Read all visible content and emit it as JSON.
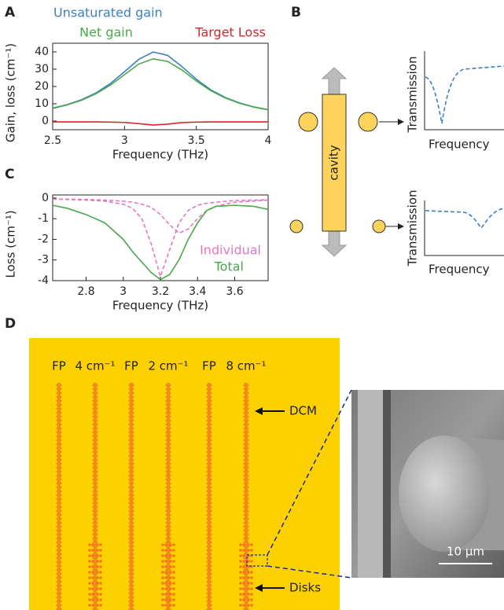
{
  "panel_labels": [
    "A",
    "B",
    "C",
    "D"
  ],
  "chart_data": [
    {
      "type": "line",
      "x_label": "Frequency (THz)",
      "y_label": "Gain, loss (cm⁻¹)",
      "x": [
        2.5,
        2.6,
        2.7,
        2.8,
        2.9,
        3.0,
        3.1,
        3.2,
        3.3,
        3.4,
        3.5,
        3.6,
        3.7,
        3.8,
        3.9,
        4.0
      ],
      "xlim": [
        2.5,
        4
      ],
      "xticks": [
        2.5,
        3,
        3.5,
        4
      ],
      "ylim": [
        -5,
        45
      ],
      "yticks": [
        0,
        10,
        20,
        30,
        40
      ],
      "series": [
        {
          "name": "Unsaturated gain",
          "color": "#3b7fc4",
          "values": [
            7.5,
            9.5,
            12.3,
            16.2,
            21.6,
            28.5,
            35.7,
            39.9,
            38.0,
            31.5,
            24.2,
            18.1,
            13.7,
            10.5,
            8.2,
            6.6
          ]
        },
        {
          "name": "Net gain",
          "color": "#4aa84a",
          "values": [
            7.3,
            9.3,
            12,
            15.7,
            20.7,
            26.8,
            33,
            36,
            34.5,
            29.5,
            23.2,
            17.6,
            13.4,
            10.3,
            8.1,
            6.5
          ]
        },
        {
          "name": "Target Loss",
          "color": "#d62728",
          "values": [
            -0.5,
            -0.5,
            -0.5,
            -0.5,
            -0.6,
            -0.8,
            -1.5,
            -2.3,
            -1.8,
            -0.9,
            -0.6,
            -0.5,
            -0.5,
            -0.5,
            -0.5,
            -0.5
          ]
        }
      ]
    },
    {
      "type": "line",
      "x_label": "Frequency (THz)",
      "y_label": "Loss (cm⁻¹)",
      "x": [
        2.62,
        2.7,
        2.8,
        2.9,
        3.0,
        3.05,
        3.1,
        3.15,
        3.2,
        3.25,
        3.3,
        3.35,
        3.4,
        3.45,
        3.5,
        3.6,
        3.7,
        3.78
      ],
      "xlim": [
        2.62,
        3.78
      ],
      "xticks": [
        2.8,
        3,
        3.2,
        3.4,
        3.6
      ],
      "ylim": [
        -4,
        0.15
      ],
      "yticks": [
        0,
        -1,
        -2,
        -3,
        -4
      ],
      "series": [
        {
          "name": "Individual",
          "color": "#e377c2",
          "dashed": true,
          "values": [
            -0.05,
            -0.07,
            -0.1,
            -0.15,
            -0.3,
            -0.5,
            -1.0,
            -2.2,
            -3.8,
            -2.5,
            -1.2,
            -0.6,
            -0.35,
            -0.25,
            -0.2,
            -0.12,
            -0.1,
            -0.08
          ]
        },
        {
          "color": "#e377c2",
          "dashed": true,
          "values": [
            -0.05,
            -0.05,
            -0.07,
            -0.1,
            -0.15,
            -0.2,
            -0.3,
            -0.45,
            -0.8,
            -1.3,
            -1.7,
            -1.5,
            -1.0,
            -0.6,
            -0.4,
            -0.2,
            -0.15,
            -0.1
          ]
        },
        {
          "name": "Total",
          "color": "#4aa84a",
          "values": [
            -0.35,
            -0.5,
            -0.8,
            -1.2,
            -2.0,
            -2.6,
            -3.1,
            -3.6,
            -3.95,
            -3.7,
            -3.0,
            -2.0,
            -1.2,
            -0.6,
            -0.4,
            -0.35,
            -0.4,
            -0.55
          ]
        }
      ]
    }
  ],
  "diagram_b": {
    "cavity": "cavity",
    "plots": [
      {
        "y_label": "Transmission",
        "x_label": "Frequency"
      },
      {
        "y_label": "Transmission",
        "x_label": "Frequency"
      }
    ]
  },
  "figure_d": {
    "labels": [
      "FP",
      "4 cm⁻¹",
      "FP",
      "2 cm⁻¹",
      "FP",
      "8 cm⁻¹"
    ],
    "dcm": "DCM",
    "disks": "Disks",
    "scale_bar": "10 μm"
  }
}
